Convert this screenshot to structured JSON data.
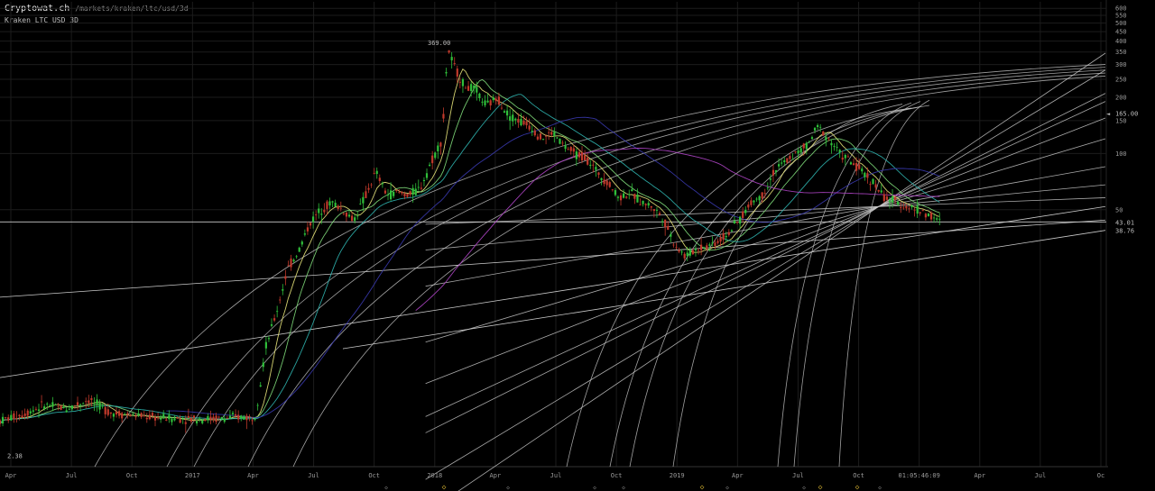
{
  "header": {
    "brand": "Cryptowat.ch",
    "path": "/markets/kraken/ltc/usd/3d",
    "subtitle": "Kraken LTC USD 3D"
  },
  "colors": {
    "background": "#000000",
    "grid": "#1c1c1c",
    "up_candle": "#2fbf3a",
    "down_candle": "#c0392b",
    "fib_lines": "#c9c9c9",
    "ma_yellow": "#e8e67a",
    "ma_green": "#7fdc7a",
    "ma_teal": "#2fb5b0",
    "ma_blue": "#3a3ab0",
    "ma_purple": "#b045c8",
    "marker": "#d4b030"
  },
  "chart_data": {
    "type": "candlestick",
    "scale": "log",
    "ylim": [
      2.1,
      650
    ],
    "x_ticks": [
      "Apr",
      "Jul",
      "Oct",
      "2017",
      "Apr",
      "Jul",
      "Oct",
      "2018",
      "Apr",
      "Jul",
      "Oct",
      "2019",
      "Apr",
      "Jul",
      "Oct",
      "01:05:46:09",
      "Apr",
      "Jul",
      "Oc"
    ],
    "y_ticks": [
      "600",
      "550",
      "500",
      "450",
      "400",
      "350",
      "300",
      "250",
      "200",
      "150",
      "100",
      "50"
    ],
    "price_labels": {
      "current": "43.01",
      "low_line": "38.76",
      "alert": "165.00",
      "high": "369.00",
      "low": "2.38"
    },
    "alert_marker": "◄",
    "price_path": [
      [
        0,
        3.7
      ],
      [
        0.02,
        4.0
      ],
      [
        0.04,
        4.5
      ],
      [
        0.06,
        4.3
      ],
      [
        0.08,
        4.8
      ],
      [
        0.1,
        4.1
      ],
      [
        0.13,
        3.9
      ],
      [
        0.16,
        3.8
      ],
      [
        0.2,
        3.8
      ],
      [
        0.22,
        3.9
      ],
      [
        0.23,
        3.8
      ],
      [
        0.235,
        5.5
      ],
      [
        0.24,
        9
      ],
      [
        0.25,
        14
      ],
      [
        0.26,
        24
      ],
      [
        0.27,
        30
      ],
      [
        0.28,
        42
      ],
      [
        0.29,
        50
      ],
      [
        0.3,
        55
      ],
      [
        0.31,
        50
      ],
      [
        0.32,
        44
      ],
      [
        0.33,
        58
      ],
      [
        0.34,
        80
      ],
      [
        0.35,
        60
      ],
      [
        0.36,
        62
      ],
      [
        0.37,
        60
      ],
      [
        0.38,
        65
      ],
      [
        0.39,
        90
      ],
      [
        0.4,
        120
      ],
      [
        0.405,
        369
      ],
      [
        0.41,
        300
      ],
      [
        0.42,
        230
      ],
      [
        0.43,
        220
      ],
      [
        0.44,
        180
      ],
      [
        0.45,
        200
      ],
      [
        0.46,
        160
      ],
      [
        0.47,
        150
      ],
      [
        0.48,
        140
      ],
      [
        0.49,
        120
      ],
      [
        0.5,
        130
      ],
      [
        0.51,
        110
      ],
      [
        0.52,
        100
      ],
      [
        0.53,
        95
      ],
      [
        0.54,
        80
      ],
      [
        0.55,
        70
      ],
      [
        0.56,
        58
      ],
      [
        0.57,
        62
      ],
      [
        0.58,
        55
      ],
      [
        0.59,
        52
      ],
      [
        0.6,
        45
      ],
      [
        0.61,
        33
      ],
      [
        0.62,
        28
      ],
      [
        0.63,
        31
      ],
      [
        0.64,
        32
      ],
      [
        0.65,
        34
      ],
      [
        0.66,
        38
      ],
      [
        0.67,
        45
      ],
      [
        0.68,
        55
      ],
      [
        0.69,
        60
      ],
      [
        0.7,
        80
      ],
      [
        0.71,
        90
      ],
      [
        0.72,
        100
      ],
      [
        0.73,
        110
      ],
      [
        0.74,
        140
      ],
      [
        0.75,
        120
      ],
      [
        0.76,
        100
      ],
      [
        0.77,
        90
      ],
      [
        0.78,
        80
      ],
      [
        0.79,
        70
      ],
      [
        0.8,
        58
      ],
      [
        0.81,
        55
      ],
      [
        0.82,
        52
      ],
      [
        0.83,
        50
      ],
      [
        0.84,
        47
      ],
      [
        0.85,
        43.01
      ]
    ]
  },
  "bottom_markers": [
    "◇",
    "◇",
    "◇",
    "◇",
    "◇",
    "◇",
    "◇",
    "◇",
    "◇",
    "◇",
    "◇"
  ]
}
